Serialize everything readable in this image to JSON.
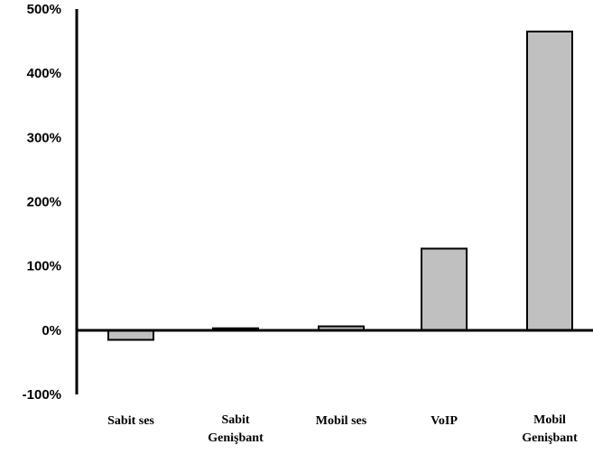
{
  "chart_data": {
    "type": "bar",
    "categories": [
      [
        "Sabit ses"
      ],
      [
        "Sabit",
        "Genişbant"
      ],
      [
        "Mobil ses"
      ],
      [
        "VoIP"
      ],
      [
        "Mobil",
        "Genişbant"
      ]
    ],
    "values": [
      -15,
      3,
      6,
      127,
      465
    ],
    "yticks": [
      "500%",
      "400%",
      "300%",
      "200%",
      "100%",
      "0%",
      "-100%"
    ],
    "ytick_values": [
      500,
      400,
      300,
      200,
      100,
      0,
      -100
    ],
    "ylim": [
      -100,
      500
    ],
    "title": "",
    "xlabel": "",
    "ylabel": "",
    "grid": false,
    "bar_color": "#c0c0c0",
    "bar_edge_color": "#000000"
  }
}
